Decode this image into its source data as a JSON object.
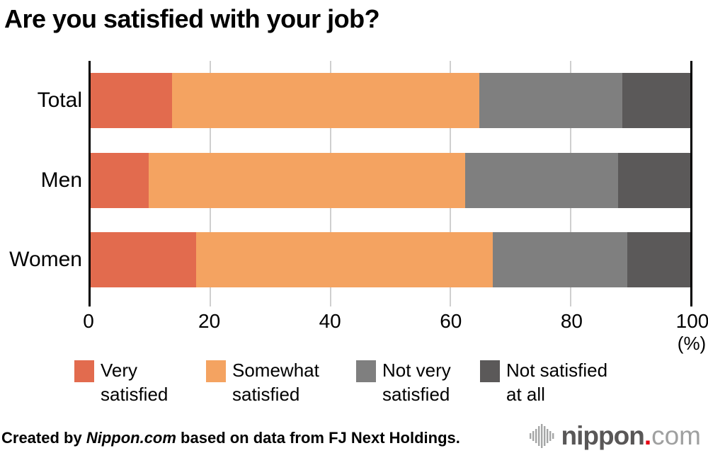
{
  "title": "Are you satisfied with your job?",
  "chart_data": {
    "type": "bar",
    "stacked": true,
    "orientation": "horizontal",
    "title": "Are you satisfied with your job?",
    "categories": [
      "Total",
      "Men",
      "Women"
    ],
    "series": [
      {
        "name": "Very satisfied",
        "color": "#e26b4e",
        "values": [
          13.6,
          9.7,
          17.6
        ]
      },
      {
        "name": "Somewhat satisfied",
        "color": "#f4a361",
        "values": [
          51.2,
          52.8,
          49.5
        ]
      },
      {
        "name": "Not very satisfied",
        "color": "#7f7f7f",
        "values": [
          23.9,
          25.5,
          22.4
        ]
      },
      {
        "name": "Not satisfied at all",
        "color": "#5b5959",
        "values": [
          11.3,
          12.0,
          10.5
        ]
      }
    ],
    "xlim": [
      0,
      100
    ],
    "x_tick_values": [
      0,
      20,
      40,
      60,
      80,
      100
    ],
    "x_tick_labels": [
      "0",
      "20",
      "40",
      "60",
      "80",
      "100"
    ],
    "x_unit_label": "(%)",
    "grid": true,
    "gridline_color": "#cfcfcf",
    "axis_edge_color": "#000000",
    "legend_position": "bottom",
    "legend_items": [
      {
        "label": "Very satisfied",
        "lines": [
          "Very",
          "satisfied"
        ],
        "color": "#e26b4e"
      },
      {
        "label": "Somewhat satisfied",
        "lines": [
          "Somewhat",
          "satisfied"
        ],
        "color": "#f4a361"
      },
      {
        "label": "Not very satisfied",
        "lines": [
          "Not very",
          "satisfied"
        ],
        "color": "#7f7f7f"
      },
      {
        "label": "Not satisfied at all",
        "lines": [
          "Not satisfied",
          "at all"
        ],
        "color": "#5b5959"
      }
    ]
  },
  "footer": {
    "credit_prefix": "Created by ",
    "credit_source": "Nippon.com",
    "credit_suffix": " based on data from FJ Next Holdings."
  },
  "logo": {
    "icon": "sound-wave-icon",
    "wordmark_main": "nippon",
    "wordmark_dot": ".",
    "wordmark_tld": "com",
    "main_color": "#595757",
    "dot_color": "#e60012",
    "tld_color": "#9fa0a0",
    "icon_color": "#a5a6a6"
  }
}
